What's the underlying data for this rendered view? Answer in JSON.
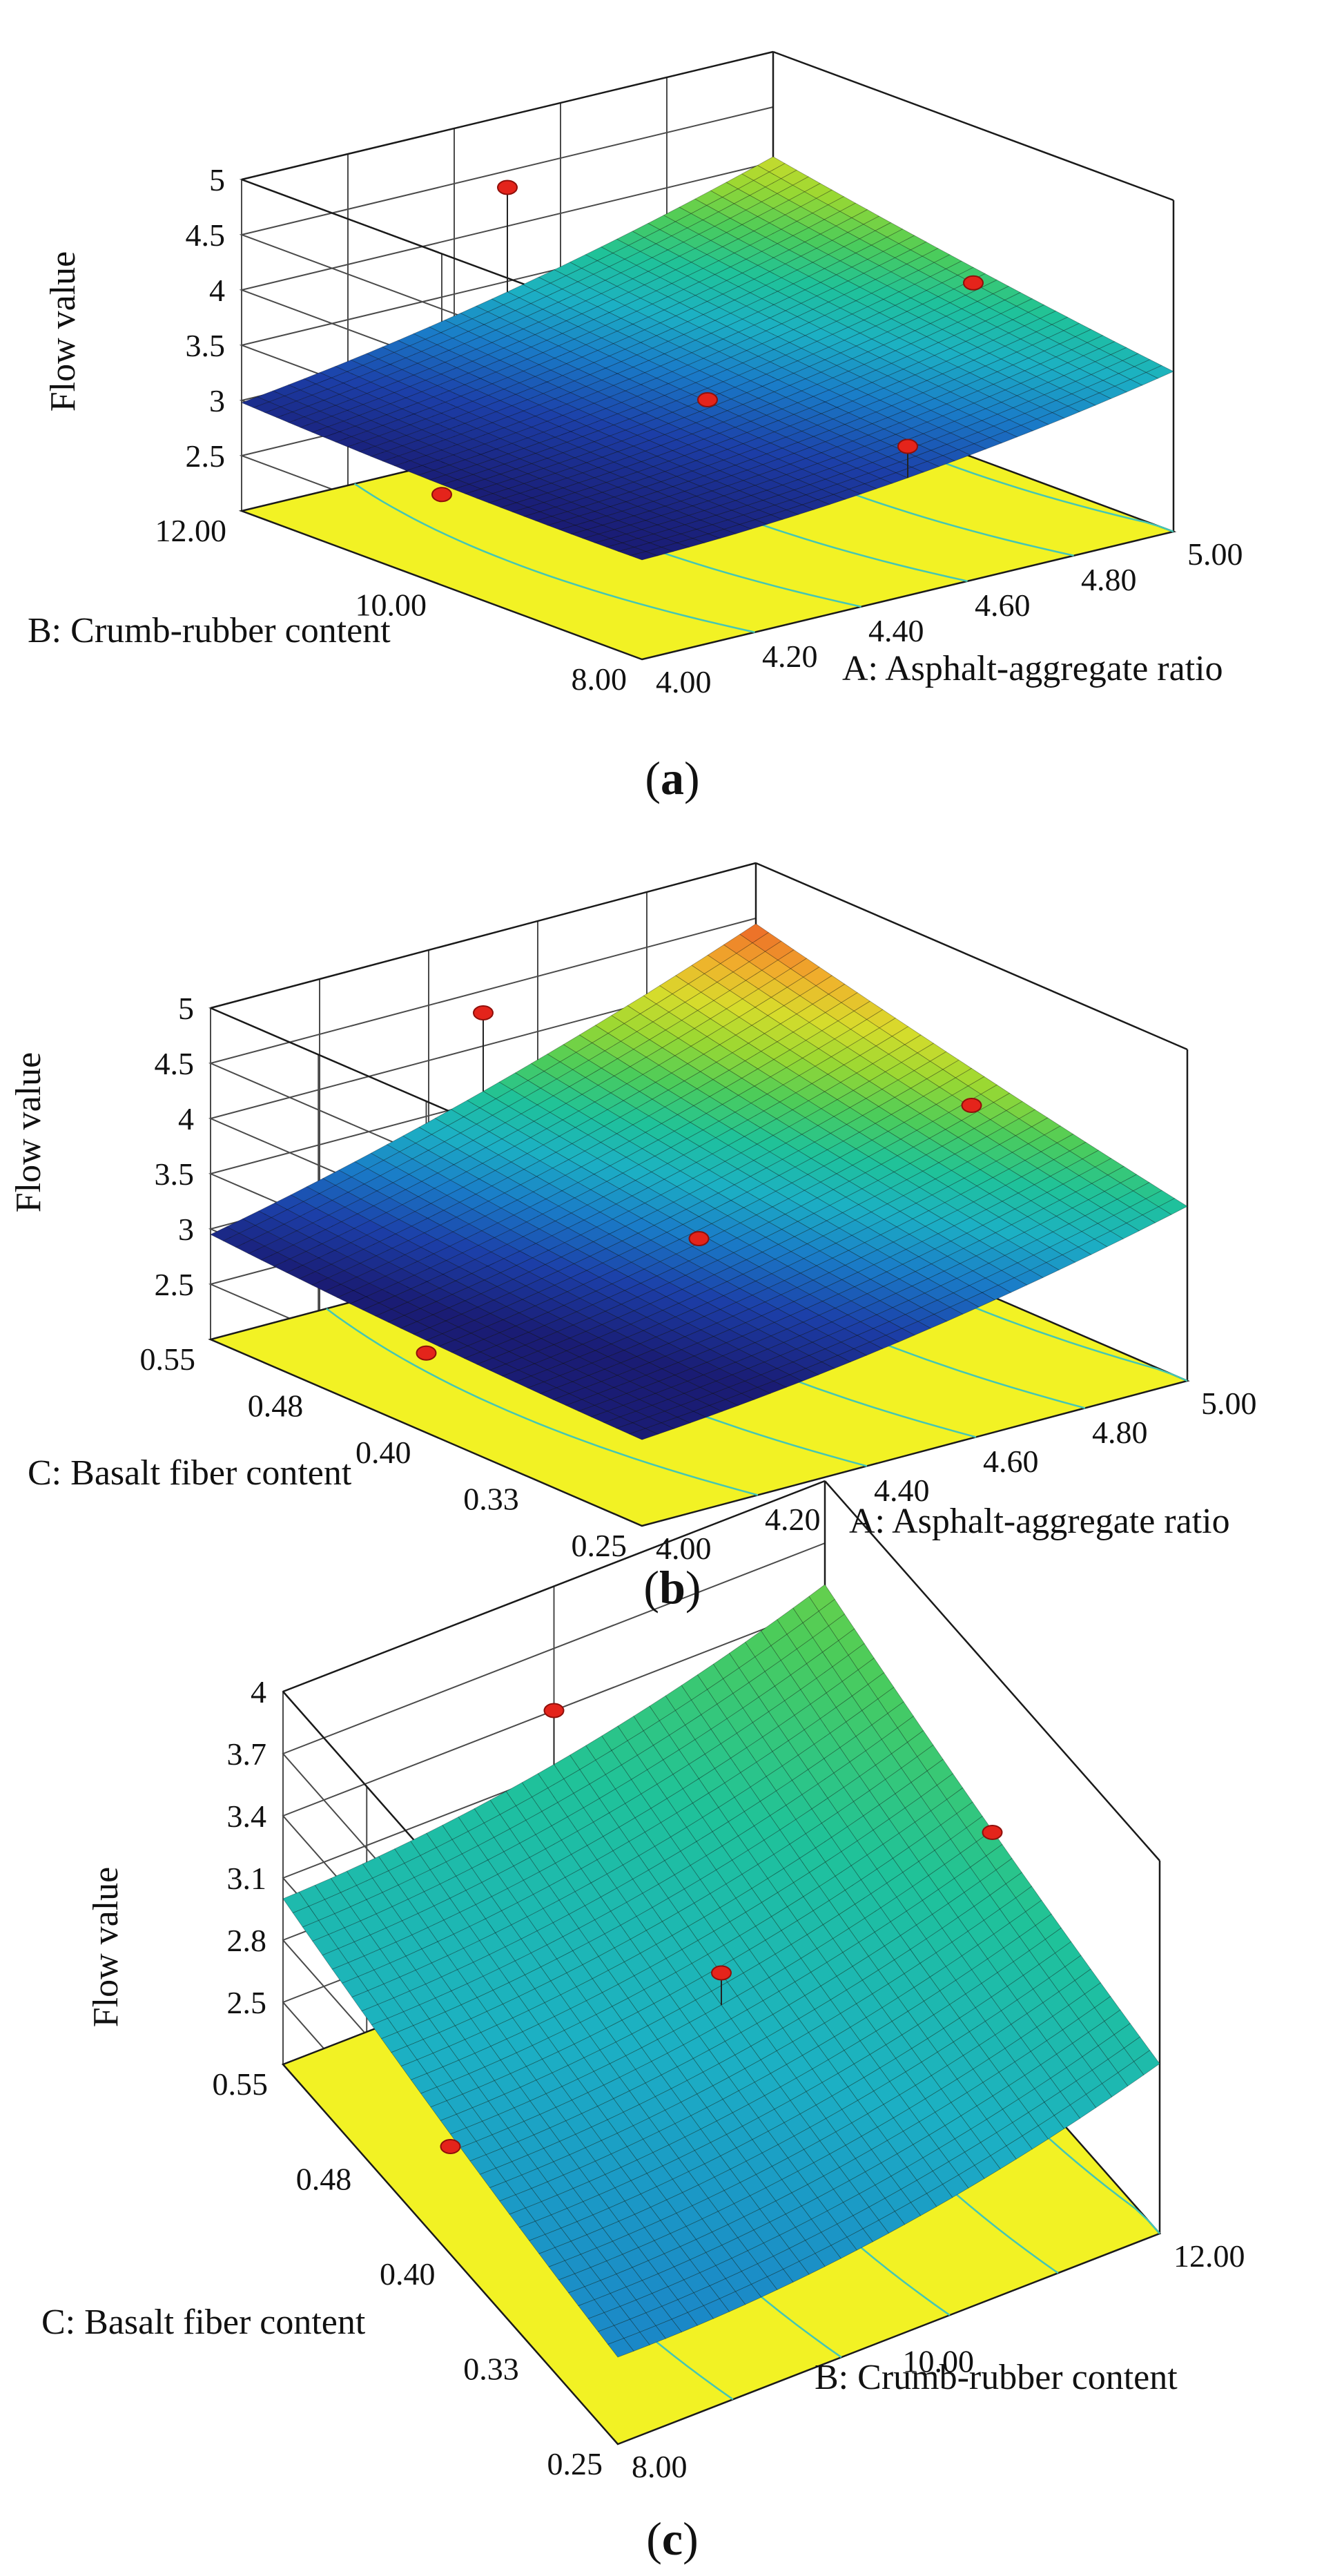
{
  "figure": {
    "caption_prefix": "(",
    "caption_suffix": ")"
  },
  "colors": {
    "floor": "#f2f224",
    "contour": "#45c6b4",
    "box_line": "#1a1a1a",
    "grid_line": "#4a4a4a",
    "point_fill": "#e4241b",
    "point_stroke": "#8e0f0a",
    "colormap": [
      "#1a1c74",
      "#1c3fa8",
      "#1a7cc8",
      "#1cb0c4",
      "#1fc29a",
      "#4ccc5a",
      "#9ad832",
      "#d8dc2c",
      "#f0b02c",
      "#ec6a28",
      "#e03a24"
    ]
  },
  "chart_data": [
    {
      "type": "surface3d",
      "panel_label": "a",
      "zlabel": "Flow value",
      "xlabel": "A: Asphalt-aggregate ratio",
      "ylabel": "B: Crumb-rubber content",
      "zlim": [
        2,
        5
      ],
      "z_ticks": [
        "2.5",
        "3",
        "3.5",
        "4",
        "4.5",
        "5"
      ],
      "x_ticks": [
        "4.00",
        "4.20",
        "4.40",
        "4.60",
        "4.80",
        "5.00"
      ],
      "y_ticks": [
        "8.00",
        "10.00",
        "12.00"
      ],
      "corner_values": {
        "x_min_y_min": 2.9,
        "x_max_y_min": 3.45,
        "x_min_y_max": 2.98,
        "x_max_y_max": 4.05
      },
      "color_range": [
        2.9,
        4.6
      ],
      "design_points": [
        {
          "x": 4.5,
          "y": 10,
          "z": 3.1
        },
        {
          "x": 4.5,
          "y": 12,
          "z": 4.35
        },
        {
          "x": 4.0,
          "y": 10,
          "z": 2.82
        },
        {
          "x": 4.5,
          "y": 8,
          "z": 3.35
        },
        {
          "x": 5.0,
          "y": 10,
          "z": 3.58
        }
      ]
    },
    {
      "type": "surface3d",
      "panel_label": "b",
      "zlabel": "Flow value",
      "xlabel": "A: Asphalt-aggregate ratio",
      "ylabel": "C: Basalt fiber content",
      "zlim": [
        2,
        5
      ],
      "z_ticks": [
        "2.5",
        "3",
        "3.5",
        "4",
        "4.5",
        "5"
      ],
      "x_ticks": [
        "4.00",
        "4.20",
        "4.40",
        "4.60",
        "4.80",
        "5.00"
      ],
      "y_ticks": [
        "0.25",
        "0.33",
        "0.40",
        "0.48",
        "0.55"
      ],
      "corner_values": {
        "x_min_y_min": 2.78,
        "x_max_y_min": 3.58,
        "x_min_y_max": 2.95,
        "x_max_y_max": 4.45
      },
      "color_range": [
        2.9,
        4.6
      ],
      "design_points": [
        {
          "x": 4.5,
          "y": 0.4,
          "z": 3.1
        },
        {
          "x": 4.5,
          "y": 0.55,
          "z": 4.3
        },
        {
          "x": 4.0,
          "y": 0.4,
          "z": 2.72
        },
        {
          "x": 5.0,
          "y": 0.4,
          "z": 3.65
        }
      ]
    },
    {
      "type": "surface3d",
      "panel_label": "c",
      "zlabel": "Flow value",
      "xlabel": "B: Crumb-rubber content",
      "ylabel": "C: Basalt fiber content",
      "zlim": [
        2.2,
        4
      ],
      "z_ticks": [
        "2.5",
        "2.8",
        "3.1",
        "3.4",
        "3.7",
        "4"
      ],
      "x_ticks": [
        "8.00",
        "10.00",
        "12.00"
      ],
      "y_ticks": [
        "0.25",
        "0.33",
        "0.40",
        "0.48",
        "0.55"
      ],
      "corner_values": {
        "x_min_y_min": 2.62,
        "x_max_y_min": 3.02,
        "x_min_y_max": 3.0,
        "x_max_y_max": 3.5
      },
      "color_range": [
        2.0,
        4.8
      ],
      "design_points": [
        {
          "x": 10,
          "y": 0.4,
          "z": 3.05
        },
        {
          "x": 10,
          "y": 0.55,
          "z": 3.4
        },
        {
          "x": 8,
          "y": 0.4,
          "z": 2.72
        },
        {
          "x": 12,
          "y": 0.4,
          "z": 3.22
        }
      ]
    }
  ]
}
